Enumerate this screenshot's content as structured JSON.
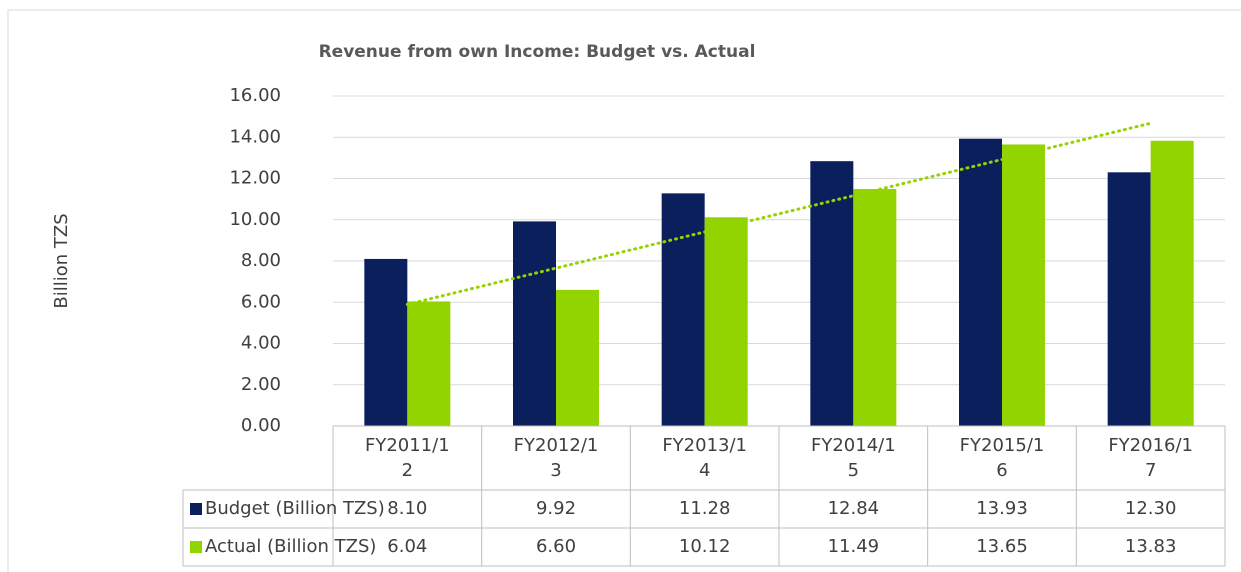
{
  "chart_data": {
    "type": "bar",
    "title": "Revenue from own Income: Budget vs. Actual",
    "y_label": "Billion TZS",
    "categories": [
      "FY2011/12",
      "FY2012/13",
      "FY2013/14",
      "FY2014/15",
      "FY2015/16",
      "FY2016/17"
    ],
    "series": [
      {
        "name": "Budget (Billion TZS)",
        "color": "#0b1f5c",
        "values": [
          8.1,
          9.92,
          11.28,
          12.84,
          13.93,
          12.3
        ],
        "value_labels": [
          "8.10",
          "9.92",
          "11.28",
          "12.84",
          "13.93",
          "12.30"
        ]
      },
      {
        "name": "Actual (Billion TZS)",
        "color": "#92d400",
        "values": [
          6.04,
          6.6,
          10.12,
          11.49,
          13.65,
          13.83
        ],
        "value_labels": [
          "6.04",
          "6.60",
          "10.12",
          "11.49",
          "13.65",
          "13.83"
        ]
      }
    ],
    "trendline": {
      "series": 1,
      "kind": "linear",
      "color": "#92d400"
    },
    "ylim": [
      0,
      16
    ],
    "yticks": [
      {
        "value": 0,
        "label": "0.00"
      },
      {
        "value": 2,
        "label": "2.00"
      },
      {
        "value": 4,
        "label": "4.00"
      },
      {
        "value": 6,
        "label": "6.00"
      },
      {
        "value": 8,
        "label": "8.00"
      },
      {
        "value": 10,
        "label": "10.00"
      },
      {
        "value": 12,
        "label": "12.00"
      },
      {
        "value": 14,
        "label": "14.00"
      },
      {
        "value": 16,
        "label": "16.00"
      }
    ],
    "grid": true,
    "data_table": true
  }
}
